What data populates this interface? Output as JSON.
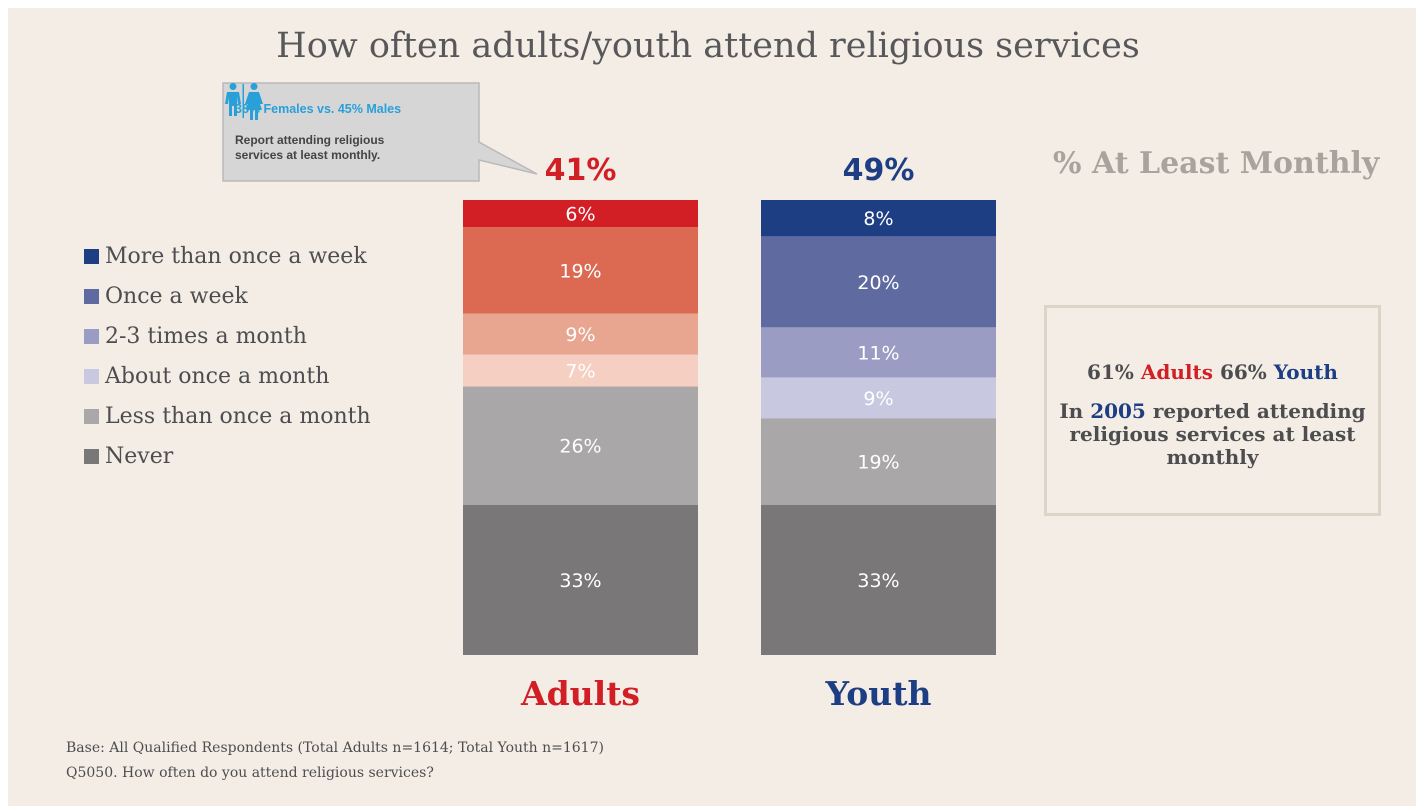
{
  "title": "How often adults/youth attend religious services",
  "callout": {
    "headline": "38% Females vs. 45% Males",
    "body": "Report attending religious services at least monthly."
  },
  "monthly_heading": "% At Least Monthly",
  "info_box": {
    "adults_pct": "61%",
    "adults_word": "Adults",
    "youth_pct": "66%",
    "youth_word": "Youth",
    "line2_pre": "In",
    "year": "2005",
    "line2_post": "reported attending religious services at least monthly"
  },
  "footnotes": [
    "Base: All Qualified Respondents (Total Adults n=1614; Total Youth n=1617)",
    "Q5050. How often do you attend religious services?"
  ],
  "chart_data": {
    "type": "bar",
    "stacked": true,
    "categories": [
      "Adults",
      "Youth"
    ],
    "category_colors": [
      "#d21f26",
      "#1e3e84"
    ],
    "totals_label": [
      "41%",
      "49%"
    ],
    "ylim": [
      0,
      100
    ],
    "series": [
      {
        "name": "More than once a week",
        "values": [
          6,
          8
        ],
        "colors": [
          "#d21f26",
          "#1e3e84"
        ],
        "legend_color": "#1e3e84"
      },
      {
        "name": "Once a week",
        "values": [
          19,
          20
        ],
        "colors": [
          "#dc6a52",
          "#5e6aa0"
        ],
        "legend_color": "#5e6aa0"
      },
      {
        "name": "2-3 times a month",
        "values": [
          9,
          11
        ],
        "colors": [
          "#e8a590",
          "#9b9cc4"
        ],
        "legend_color": "#9b9cc4"
      },
      {
        "name": "About once a month",
        "values": [
          7,
          9
        ],
        "colors": [
          "#f4cfc2",
          "#c8c9e0"
        ],
        "legend_color": "#c8c9e0"
      },
      {
        "name": "Less than once a month",
        "values": [
          26,
          19
        ],
        "colors": [
          "#a9a7a7",
          "#a9a7a7"
        ],
        "legend_color": "#a9a7a7"
      },
      {
        "name": "Never",
        "values": [
          33,
          33
        ],
        "colors": [
          "#797777",
          "#797777"
        ],
        "legend_color": "#797777"
      }
    ]
  }
}
